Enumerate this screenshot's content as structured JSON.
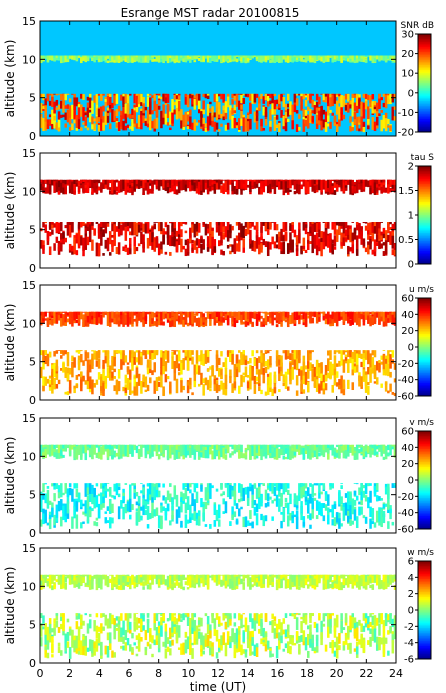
{
  "title": "Esrange MST radar 20100815",
  "chart_data": [
    {
      "type": "heatmap",
      "quantity": "SNR",
      "colorbar_label": "SNR dB",
      "clim": [
        -20,
        30
      ],
      "cticks": [
        "30",
        "20",
        "10",
        "0",
        "-10",
        "-20"
      ],
      "ylabel": "altitude (km)",
      "yticks": [
        "0",
        "5",
        "10",
        "15"
      ],
      "ylim": [
        0,
        15
      ],
      "xlim": [
        0,
        24
      ],
      "features": [
        {
          "desc": "strong near ground",
          "alt_range": [
            0.5,
            5.5
          ],
          "value_range": [
            10,
            28
          ]
        },
        {
          "desc": "layer",
          "alt_range": [
            9.5,
            10.5
          ],
          "value_range": [
            2,
            10
          ]
        },
        {
          "desc": "background",
          "alt_range": [
            0,
            15
          ],
          "value_range": [
            -8,
            0
          ]
        }
      ]
    },
    {
      "type": "heatmap",
      "quantity": "tau",
      "colorbar_label": "tau S",
      "clim": [
        0,
        2
      ],
      "cticks": [
        "2",
        "1.5",
        "1",
        "0.5",
        "0"
      ],
      "ylabel": "altitude (km)",
      "yticks": [
        "0",
        "5",
        "10",
        "15"
      ],
      "ylim": [
        0,
        15
      ],
      "xlim": [
        0,
        24
      ],
      "features": [
        {
          "desc": "lower layer",
          "alt_range": [
            1.5,
            6
          ],
          "value_range": [
            1.6,
            2
          ]
        },
        {
          "desc": "upper layer",
          "alt_range": [
            9.5,
            11.5
          ],
          "value_range": [
            1.7,
            2
          ]
        }
      ]
    },
    {
      "type": "heatmap",
      "quantity": "u",
      "colorbar_label": "u m/s",
      "clim": [
        -60,
        60
      ],
      "cticks": [
        "60",
        "40",
        "20",
        "0",
        "-20",
        "-40",
        "-60"
      ],
      "ylabel": "altitude (km)",
      "yticks": [
        "0",
        "5",
        "10",
        "15"
      ],
      "ylim": [
        0,
        15
      ],
      "xlim": [
        0,
        24
      ],
      "features": [
        {
          "desc": "lower layer",
          "alt_range": [
            0.5,
            6.5
          ],
          "value_range": [
            15,
            35
          ]
        },
        {
          "desc": "upper layer",
          "alt_range": [
            9.5,
            11.5
          ],
          "value_range": [
            30,
            45
          ]
        }
      ]
    },
    {
      "type": "heatmap",
      "quantity": "v",
      "colorbar_label": "v m/s",
      "clim": [
        -60,
        60
      ],
      "cticks": [
        "60",
        "40",
        "20",
        "0",
        "-20",
        "-40",
        "-60"
      ],
      "ylabel": "altitude (km)",
      "yticks": [
        "0",
        "5",
        "10",
        "15"
      ],
      "ylim": [
        0,
        15
      ],
      "xlim": [
        0,
        24
      ],
      "features": [
        {
          "desc": "lower layer",
          "alt_range": [
            0.5,
            6.5
          ],
          "value_range": [
            -22,
            -2
          ]
        },
        {
          "desc": "upper layer",
          "alt_range": [
            9.5,
            11.5
          ],
          "value_range": [
            -10,
            5
          ]
        }
      ]
    },
    {
      "type": "heatmap",
      "quantity": "w",
      "colorbar_label": "w m/s",
      "clim": [
        -6,
        6
      ],
      "cticks": [
        "6",
        "4",
        "2",
        "0",
        "-2",
        "-4",
        "-6"
      ],
      "ylabel": "altitude (km)",
      "yticks": [
        "0",
        "5",
        "10",
        "15"
      ],
      "ylim": [
        0,
        15
      ],
      "xlim": [
        0,
        24
      ],
      "xlabel": "time (UT)",
      "xticks": [
        "0",
        "2",
        "4",
        "6",
        "8",
        "10",
        "12",
        "14",
        "16",
        "18",
        "20",
        "22",
        "24"
      ],
      "features": [
        {
          "desc": "lower layer",
          "alt_range": [
            0.5,
            6.5
          ],
          "value_range": [
            -1,
            2
          ]
        },
        {
          "desc": "upper layer",
          "alt_range": [
            9.5,
            11.5
          ],
          "value_range": [
            0,
            1.5
          ]
        }
      ]
    }
  ]
}
